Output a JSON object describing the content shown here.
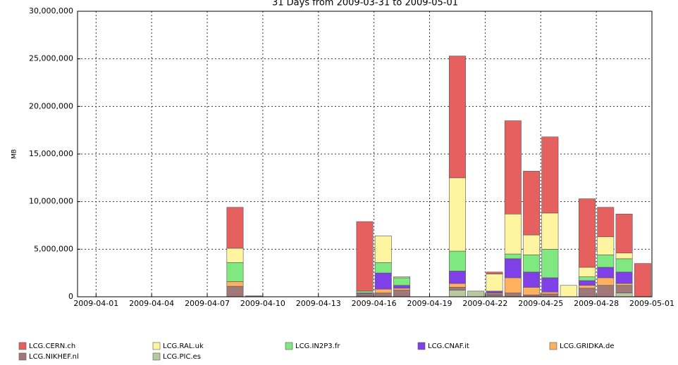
{
  "chart_data": {
    "type": "stacked-bar",
    "title": "31 Days from 2009-03-31 to 2009-05-01",
    "ylabel": "MB",
    "x": [
      "2009-03-31",
      "2009-04-01",
      "2009-04-02",
      "2009-04-03",
      "2009-04-04",
      "2009-04-05",
      "2009-04-06",
      "2009-04-07",
      "2009-04-08",
      "2009-04-09",
      "2009-04-10",
      "2009-04-11",
      "2009-04-12",
      "2009-04-13",
      "2009-04-14",
      "2009-04-15",
      "2009-04-16",
      "2009-04-17",
      "2009-04-18",
      "2009-04-19",
      "2009-04-20",
      "2009-04-21",
      "2009-04-22",
      "2009-04-23",
      "2009-04-24",
      "2009-04-25",
      "2009-04-26",
      "2009-04-27",
      "2009-04-28",
      "2009-04-29",
      "2009-04-30"
    ],
    "xlim": [
      "2009-03-31",
      "2009-05-01"
    ],
    "xticks": [
      "2009-04-01",
      "2009-04-04",
      "2009-04-07",
      "2009-04-10",
      "2009-04-13",
      "2009-04-16",
      "2009-04-19",
      "2009-04-22",
      "2009-04-25",
      "2009-04-28",
      "2009-05-01"
    ],
    "ylim": [
      0,
      30000000
    ],
    "yticks": [
      0,
      {
        "value": 5000000,
        "label": "5,000,000"
      },
      {
        "value": 10000000,
        "label": "10,000,000"
      },
      {
        "value": 15000000,
        "label": "15,000,000"
      },
      {
        "value": 20000000,
        "label": "20,000,000"
      },
      {
        "value": 25000000,
        "label": "25,000,000"
      },
      {
        "value": 30000000,
        "label": "30,000,000"
      }
    ],
    "grid": true,
    "series": [
      {
        "name": "LCG.CERN.ch",
        "color": "#e66060",
        "values": [
          0,
          0,
          0,
          0,
          0,
          0,
          0,
          0,
          4300000,
          0,
          0,
          0,
          0,
          0,
          0,
          7300000,
          0,
          0,
          0,
          0,
          12800000,
          0,
          200000,
          9800000,
          6700000,
          8000000,
          0,
          7200000,
          3100000,
          4100000,
          3500000
        ]
      },
      {
        "name": "LCG.RAL.uk",
        "color": "#fff5a0",
        "values": [
          0,
          0,
          0,
          0,
          0,
          0,
          0,
          0,
          1500000,
          0,
          0,
          0,
          0,
          0,
          0,
          0,
          2800000,
          100000,
          0,
          0,
          7700000,
          0,
          1800000,
          4200000,
          2100000,
          3800000,
          1200000,
          1000000,
          1900000,
          600000,
          0
        ]
      },
      {
        "name": "LCG.IN2P3.fr",
        "color": "#80e880",
        "values": [
          0,
          0,
          0,
          0,
          0,
          0,
          0,
          0,
          2000000,
          0,
          0,
          0,
          0,
          0,
          0,
          200000,
          1100000,
          800000,
          0,
          0,
          2100000,
          0,
          0,
          500000,
          1800000,
          3000000,
          0,
          400000,
          1300000,
          1400000,
          0
        ]
      },
      {
        "name": "LCG.CNAF.it",
        "color": "#8040e8",
        "values": [
          0,
          0,
          0,
          0,
          0,
          0,
          0,
          0,
          0,
          0,
          0,
          0,
          0,
          0,
          0,
          100000,
          1700000,
          300000,
          0,
          0,
          1300000,
          0,
          200000,
          2000000,
          1600000,
          1500000,
          0,
          500000,
          1100000,
          1200000,
          0
        ]
      },
      {
        "name": "LCG.GRIDKA.de",
        "color": "#ffb060",
        "values": [
          0,
          0,
          0,
          0,
          0,
          0,
          0,
          0,
          500000,
          0,
          0,
          0,
          0,
          0,
          0,
          100000,
          400000,
          200000,
          0,
          0,
          400000,
          0,
          100000,
          1600000,
          800000,
          200000,
          0,
          300000,
          800000,
          200000,
          0
        ]
      },
      {
        "name": "LCG.NIKHEF.nl",
        "color": "#a07878",
        "values": [
          0,
          0,
          0,
          0,
          0,
          0,
          0,
          0,
          1100000,
          100000,
          0,
          0,
          0,
          0,
          0,
          200000,
          400000,
          700000,
          0,
          0,
          300000,
          0,
          200000,
          400000,
          200000,
          300000,
          0,
          900000,
          1200000,
          800000,
          0
        ]
      },
      {
        "name": "LCG.PIC.es",
        "color": "#b8c8a0",
        "values": [
          0,
          0,
          0,
          0,
          0,
          0,
          0,
          0,
          0,
          0,
          0,
          0,
          0,
          0,
          0,
          0,
          0,
          0,
          0,
          0,
          700000,
          600000,
          100000,
          0,
          0,
          0,
          0,
          0,
          0,
          400000,
          0
        ]
      }
    ]
  }
}
